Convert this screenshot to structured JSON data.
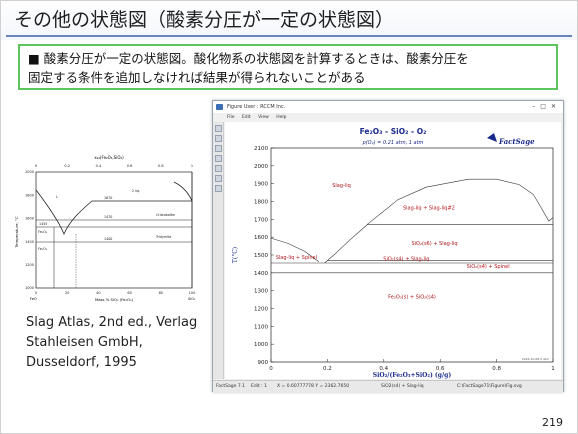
{
  "slide": {
    "title": "その他の状態図（酸素分圧が一定の状態図）",
    "note_line1": "■ 酸素分圧が一定の状態図。酸化物系の状態図を計算するときは、酸素分圧を",
    "note_line2": "固定する条件を追加しなければ結果が得られないことがある",
    "caption_line1": "Slag Atlas, 2nd ed., Verlag",
    "caption_line2": "Stahleisen GmbH,",
    "caption_line3": "Dusseldorf, 1995",
    "page_number": "219"
  },
  "left_figure": {
    "top_axis_label": "x₂₂(Fe₂O₃,SiO₂)",
    "top_ticks": [
      "0",
      "0.2",
      "0.4",
      "0.6",
      "0.8",
      "1"
    ],
    "y_axis_label": "Temperature, °C",
    "y_ticks": [
      "2000",
      "1800",
      "1600",
      "1400",
      "1200",
      "1000"
    ],
    "x_axis_label": "Mass % SiO₂ (Fe₂O₃)",
    "x_ticks": [
      "0",
      "20",
      "40",
      "60",
      "80",
      "100"
    ],
    "x_end_labels": [
      "FeO",
      "SiO₂"
    ],
    "region_labels": [
      "L",
      "2 liq.",
      "Cristobalite",
      "Tridymite",
      "Fe₃O₄",
      "Fe₂O₃"
    ],
    "temps": [
      "1670",
      "1470",
      "1455",
      "1400"
    ]
  },
  "window": {
    "title": "Figure  User : RCCM Inc.",
    "menu": [
      "File",
      "Edit",
      "View",
      "Help"
    ],
    "status": [
      "FactSage 7.1",
      "Edit : 1",
      "X = 0.60777778  Y = 2362.7650",
      "SiO2(s4) + Slag-liq",
      "C:\\FactSage71\\Figure\\Fig.svg"
    ]
  },
  "chart_data": {
    "type": "phase-diagram",
    "title": "Fe₂O₃ - SiO₂ - O₂",
    "subtitle": "p(O₂) = 0.21 atm, 1 atm",
    "logo": "FactSage",
    "xlabel": "SiO₂/(Fe₂O₃+SiO₂) (g/g)",
    "ylabel": "T(°C)",
    "xlim": [
      0,
      1
    ],
    "ylim": [
      900,
      2100
    ],
    "x_ticks": [
      "0",
      "0.2",
      "0.4",
      "0.6",
      "0.8",
      "1"
    ],
    "y_ticks": [
      "900",
      "1000",
      "1100",
      "1200",
      "1300",
      "1400",
      "1500",
      "1600",
      "1700",
      "1800",
      "1900",
      "2000",
      "2100"
    ],
    "date_stamp": "2016-10-08  0 atm",
    "region_labels": [
      {
        "text": "Slag-liq",
        "x": 0.25,
        "y": 1880
      },
      {
        "text": "Slag-liq + Slag-liq#2",
        "x": 0.56,
        "y": 1755
      },
      {
        "text": "SiO₂(s6) + Slag-liq",
        "x": 0.58,
        "y": 1555
      },
      {
        "text": "Slag-liq + Spinel",
        "x": 0.09,
        "y": 1478
      },
      {
        "text": "SiO₂(s4) + Slag-liq",
        "x": 0.48,
        "y": 1470
      },
      {
        "text": "SiO₂(s4) + Spinel",
        "x": 0.77,
        "y": 1428
      },
      {
        "text": "Fe₂O₃(s) + SiO₂(s4)",
        "x": 0.5,
        "y": 1255
      }
    ],
    "boundaries": [
      {
        "name": "slag-liquidus",
        "points": [
          [
            0,
            1595
          ],
          [
            0.06,
            1565
          ],
          [
            0.12,
            1520
          ],
          [
            0.17,
            1462
          ]
        ]
      },
      {
        "name": "silica-liquidus",
        "points": [
          [
            0.19,
            1455
          ],
          [
            0.23,
            1510
          ],
          [
            0.28,
            1585
          ],
          [
            0.34,
            1668
          ]
        ]
      },
      {
        "name": "miscibility-gap",
        "points": [
          [
            0.34,
            1670
          ],
          [
            0.45,
            1810
          ],
          [
            0.55,
            1880
          ],
          [
            0.7,
            1925
          ],
          [
            0.8,
            1925
          ],
          [
            0.88,
            1895
          ],
          [
            0.93,
            1840
          ],
          [
            0.96,
            1760
          ],
          [
            0.985,
            1690
          ],
          [
            1.0,
            1710
          ]
        ]
      },
      {
        "name": "monotectic",
        "points": [
          [
            0.34,
            1670
          ],
          [
            1.0,
            1670
          ]
        ]
      },
      {
        "name": "cristobalite-tridymite",
        "points": [
          [
            0.2,
            1470
          ],
          [
            1.0,
            1470
          ]
        ]
      },
      {
        "name": "eutectic",
        "points": [
          [
            0.0,
            1455
          ],
          [
            1.0,
            1455
          ]
        ]
      },
      {
        "name": "subsolidus",
        "points": [
          [
            0.0,
            1400
          ],
          [
            1.0,
            1400
          ]
        ]
      }
    ]
  }
}
